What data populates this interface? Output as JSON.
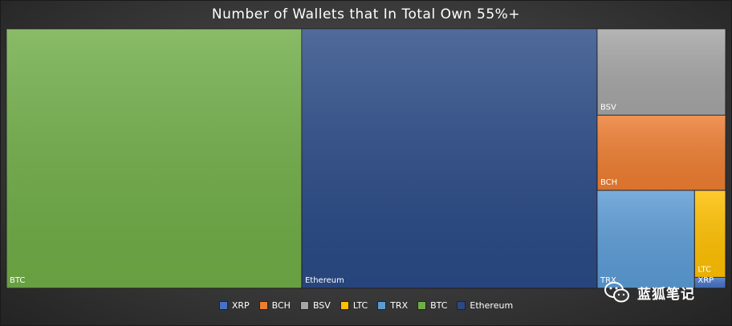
{
  "chart_data": {
    "type": "treemap",
    "title": "Number of Wallets that In Total Own 55%+",
    "items": [
      {
        "name": "BTC",
        "value": 34.08,
        "color": "#70ad47"
      },
      {
        "name": "Ethereum",
        "value": 34.08,
        "color": "#2a4a86"
      },
      {
        "name": "BSV",
        "value": 4.93,
        "color": "#a5a5a5"
      },
      {
        "name": "BCH",
        "value": 4.3,
        "color": "#ed7d31"
      },
      {
        "name": "TRX",
        "value": 4.24,
        "color": "#5b9bd5"
      },
      {
        "name": "LTC",
        "value": 1.2,
        "color": "#ffc000"
      },
      {
        "name": "XRP",
        "value": 0.15,
        "color": "#4472c4"
      }
    ],
    "legend": {
      "placement": "bottom",
      "entries": [
        "XRP",
        "BCH",
        "BSV",
        "LTC",
        "TRX",
        "BTC",
        "Ethereum"
      ]
    }
  },
  "watermark": {
    "icon": "wechat-icon",
    "text": "蓝狐笔记"
  }
}
